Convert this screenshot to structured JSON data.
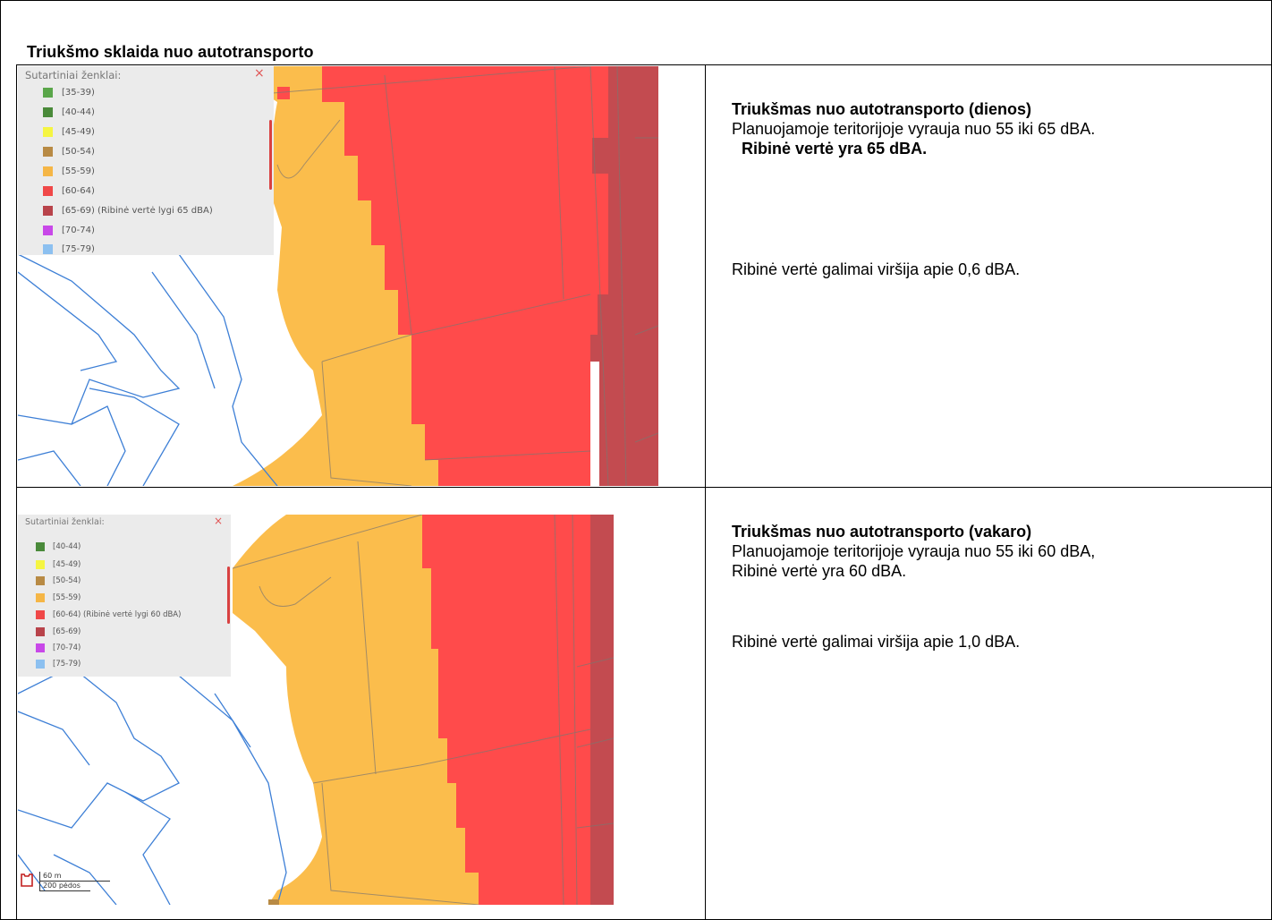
{
  "title": "Triukšmo sklaida nuo autotransporto",
  "legend_header": "Sutartiniai ženklai:",
  "legend_close": "×",
  "day": {
    "heading": "Triukšmas nuo autotransporto (dienos)",
    "line1": "Planuojamoje teritorijoje vyrauja nuo 55 iki 65 dBA.",
    "line2": "Ribinė vertė yra 65 dBA.",
    "line3": "Ribinė vertė galimai viršija apie 0,6 dBA.",
    "legend": [
      {
        "label": "[35-39)",
        "color": "#5aa64a"
      },
      {
        "label": "[40-44)",
        "color": "#4a8a3a"
      },
      {
        "label": "[45-49)",
        "color": "#f5f542"
      },
      {
        "label": "[50-54)",
        "color": "#b88a44"
      },
      {
        "label": "[55-59)",
        "color": "#f5b646"
      },
      {
        "label": "[60-64)",
        "color": "#f04848"
      },
      {
        "label": "[65-69) (Ribinė vertė lygi 65 dBA)",
        "color": "#b8434a"
      },
      {
        "label": "[70-74)",
        "color": "#c848e8"
      },
      {
        "label": "[75-79)",
        "color": "#8cc0f0"
      }
    ]
  },
  "evening": {
    "heading": "Triukšmas nuo autotransporto (vakaro)",
    "line1": "Planuojamoje teritorijoje vyrauja nuo 55 iki 60 dBA,",
    "line2": "Ribinė vertė yra 60 dBA.",
    "line3": "Ribinė vertė galimai viršija apie 1,0 dBA.",
    "legend": [
      {
        "label": "[40-44)",
        "color": "#4a8a3a"
      },
      {
        "label": "[45-49)",
        "color": "#f5f542"
      },
      {
        "label": "[50-54)",
        "color": "#b88a44"
      },
      {
        "label": "[55-59)",
        "color": "#f5b646"
      },
      {
        "label": "[60-64) (Ribinė vertė lygi 60 dBA)",
        "color": "#f04848"
      },
      {
        "label": "[65-69)",
        "color": "#b8434a"
      },
      {
        "label": "[70-74)",
        "color": "#c848e8"
      },
      {
        "label": "[75-79)",
        "color": "#8cc0f0"
      }
    ],
    "scale_m": "60 m",
    "scale_ft": "200 pėdos"
  },
  "colors": {
    "zone_55_59": "#fbbd4c",
    "zone_60_64": "#ff4b4b",
    "zone_65_69": "#c34b50",
    "parcel_line": "#3d7fd6"
  }
}
